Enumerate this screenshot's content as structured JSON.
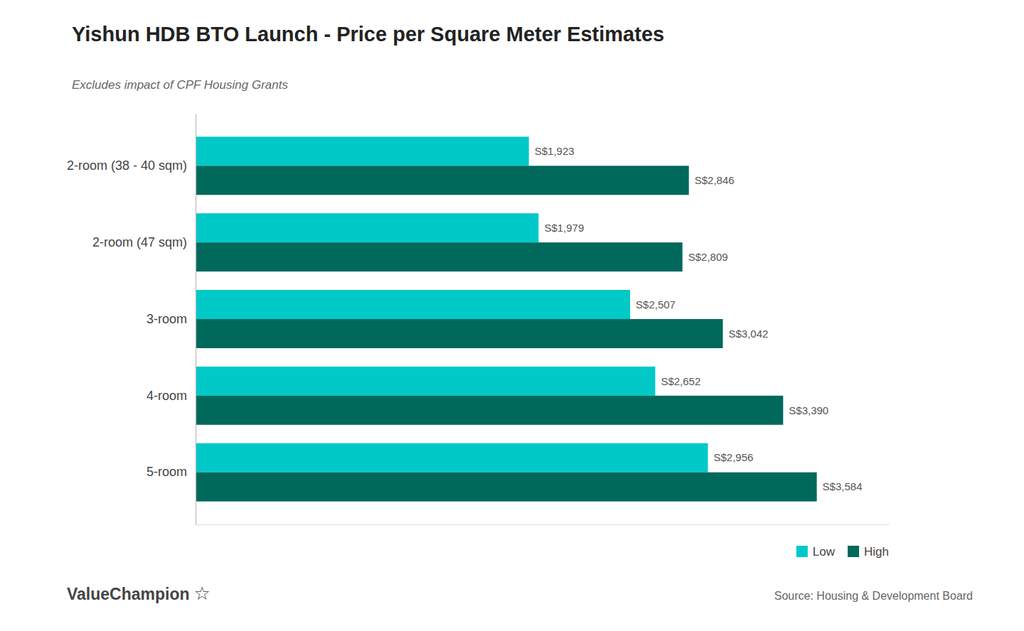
{
  "chart_data": {
    "type": "bar",
    "orientation": "horizontal",
    "title": "Yishun HDB BTO Launch - Price per Square Meter Estimates",
    "subtitle": "Excludes impact of CPF Housing Grants",
    "categories": [
      "2-room (38 - 40 sqm)",
      "2-room (47 sqm)",
      "3-room",
      "4-room",
      "5-room"
    ],
    "series": [
      {
        "name": "Low",
        "color": "#00C9C8",
        "values": [
          1923,
          1979,
          2507,
          2652,
          2956
        ],
        "value_labels": [
          "S$1,923",
          "S$1,979",
          "S$2,507",
          "S$2,652",
          "S$2,956"
        ]
      },
      {
        "name": "High",
        "color": "#00695C",
        "values": [
          2846,
          2809,
          3042,
          3390,
          3584
        ],
        "value_labels": [
          "S$2,846",
          "S$2,809",
          "S$3,042",
          "S$3,390",
          "S$3,584"
        ]
      }
    ],
    "xlim": [
      0,
      4000
    ],
    "tick_labels": "y",
    "grid": false,
    "data_labels": true,
    "legend": "lower right",
    "annotations": [
      "Source: Housing & Development Board",
      "ValueChampion",
      "☆"
    ]
  }
}
